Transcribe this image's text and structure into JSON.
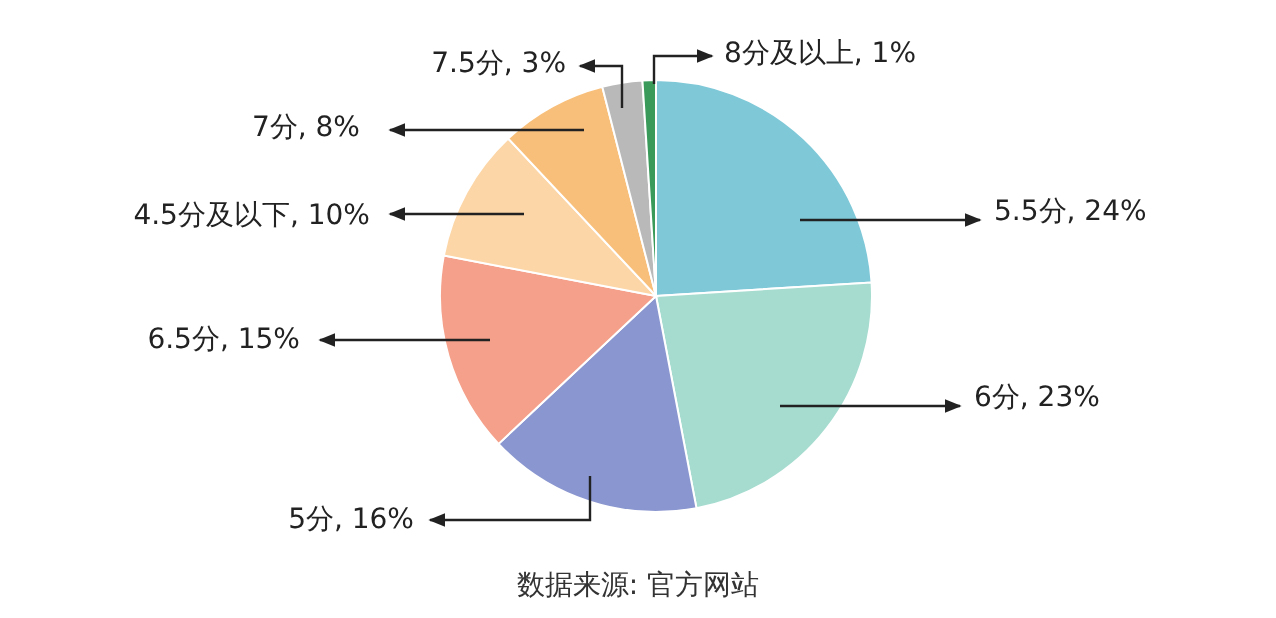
{
  "chart_data": {
    "type": "pie",
    "categories": [
      "5.5分",
      "6分",
      "5分",
      "6.5分",
      "4.5分及以下",
      "7分",
      "7.5分",
      "8分及以上"
    ],
    "values": [
      24,
      23,
      16,
      15,
      10,
      8,
      3,
      1
    ],
    "value_labels": [
      "24%",
      "23%",
      "16%",
      "15%",
      "10%",
      "8%",
      "3%",
      "1%"
    ],
    "colors": [
      "#7ec8d8",
      "#a6dccf",
      "#8a96cf",
      "#f4a08a",
      "#fcd6a6",
      "#f8bf7a",
      "#b9b9b9",
      "#3a9a5a"
    ],
    "legend": false,
    "annotations": [
      "数据来源: 官方网站"
    ]
  }
}
